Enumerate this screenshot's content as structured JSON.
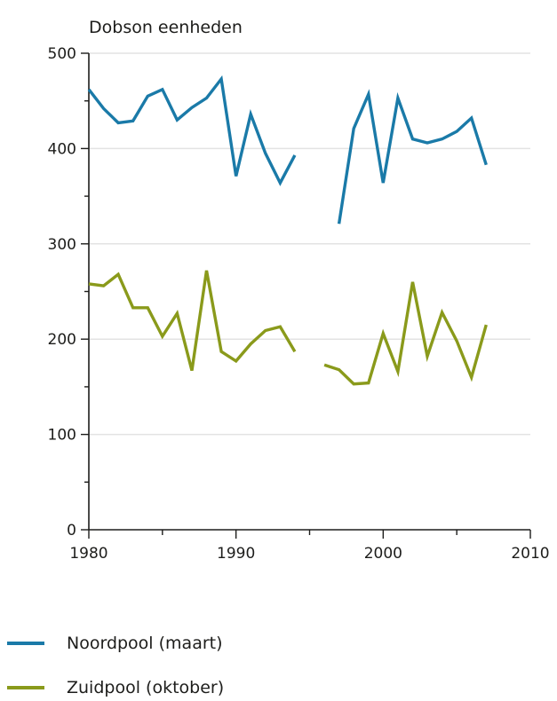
{
  "chart_data": {
    "type": "line",
    "ylabel": "Dobson eenheden",
    "xlabel": "",
    "xlim": [
      1980,
      2010
    ],
    "ylim": [
      0,
      500
    ],
    "x_ticks": [
      1980,
      1990,
      2000,
      2010
    ],
    "y_ticks": [
      0,
      100,
      200,
      300,
      400,
      500
    ],
    "grid": "horizontal",
    "legend_position": "bottom-left",
    "series": [
      {
        "name": "Noordpool (maart)",
        "color": "#1a7aa8",
        "points": [
          [
            1980,
            462
          ],
          [
            1981,
            442
          ],
          [
            1982,
            427
          ],
          [
            1983,
            429
          ],
          [
            1984,
            455
          ],
          [
            1985,
            462
          ],
          [
            1986,
            430
          ],
          [
            1987,
            443
          ],
          [
            1988,
            453
          ],
          [
            1989,
            473
          ],
          [
            1990,
            371
          ],
          [
            1991,
            436
          ],
          [
            1992,
            395
          ],
          [
            1993,
            364
          ],
          [
            1994,
            393
          ],
          [
            1995,
            null
          ],
          [
            1996,
            null
          ],
          [
            1997,
            321
          ],
          [
            1998,
            421
          ],
          [
            1999,
            457
          ],
          [
            2000,
            364
          ],
          [
            2001,
            453
          ],
          [
            2002,
            410
          ],
          [
            2003,
            406
          ],
          [
            2004,
            410
          ],
          [
            2005,
            418
          ],
          [
            2006,
            432
          ],
          [
            2007,
            383
          ]
        ]
      },
      {
        "name": "Zuidpool (oktober)",
        "color": "#8a9a1b",
        "points": [
          [
            1980,
            258
          ],
          [
            1981,
            256
          ],
          [
            1982,
            268
          ],
          [
            1983,
            233
          ],
          [
            1984,
            233
          ],
          [
            1985,
            203
          ],
          [
            1986,
            227
          ],
          [
            1987,
            167
          ],
          [
            1988,
            272
          ],
          [
            1989,
            187
          ],
          [
            1990,
            177
          ],
          [
            1991,
            195
          ],
          [
            1992,
            209
          ],
          [
            1993,
            213
          ],
          [
            1994,
            187
          ],
          [
            1995,
            null
          ],
          [
            1996,
            173
          ],
          [
            1997,
            168
          ],
          [
            1998,
            153
          ],
          [
            1999,
            154
          ],
          [
            2000,
            206
          ],
          [
            2001,
            166
          ],
          [
            2002,
            260
          ],
          [
            2003,
            182
          ],
          [
            2004,
            228
          ],
          [
            2005,
            198
          ],
          [
            2006,
            160
          ],
          [
            2007,
            215
          ]
        ]
      }
    ]
  }
}
